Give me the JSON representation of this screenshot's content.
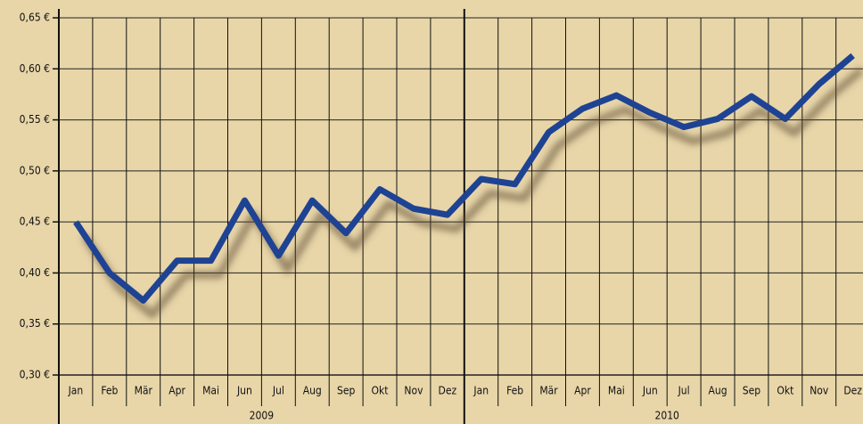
{
  "chart_data": {
    "type": "line",
    "categories": [
      "Jan",
      "Feb",
      "Mär",
      "Apr",
      "Mai",
      "Jun",
      "Jul",
      "Aug",
      "Sep",
      "Okt",
      "Nov",
      "Dez",
      "Jan",
      "Feb",
      "Mär",
      "Apr",
      "Mai",
      "Jun",
      "Jul",
      "Aug",
      "Sep",
      "Okt",
      "Nov",
      "Dez"
    ],
    "groups": [
      "2009",
      "2010"
    ],
    "series": [
      {
        "color": "#1f4393",
        "values": [
          0.45,
          0.4,
          0.373,
          0.412,
          0.412,
          0.471,
          0.417,
          0.471,
          0.439,
          0.482,
          0.463,
          0.457,
          0.492,
          0.487,
          0.538,
          0.561,
          0.574,
          0.557,
          0.543,
          0.551,
          0.573,
          0.551,
          0.585,
          0.613
        ]
      }
    ],
    "ylim": [
      0.3,
      0.65
    ],
    "yticks": [
      {
        "value": 0.3,
        "label": "0,30 €"
      },
      {
        "value": 0.35,
        "label": "0,35 €"
      },
      {
        "value": 0.4,
        "label": "0,40 €"
      },
      {
        "value": 0.45,
        "label": "0,45 €"
      },
      {
        "value": 0.5,
        "label": "0,50 €"
      },
      {
        "value": 0.55,
        "label": "0,55 €"
      },
      {
        "value": 0.6,
        "label": "0,60 €"
      },
      {
        "value": 0.65,
        "label": "0,65 €"
      }
    ],
    "grid": true
  }
}
